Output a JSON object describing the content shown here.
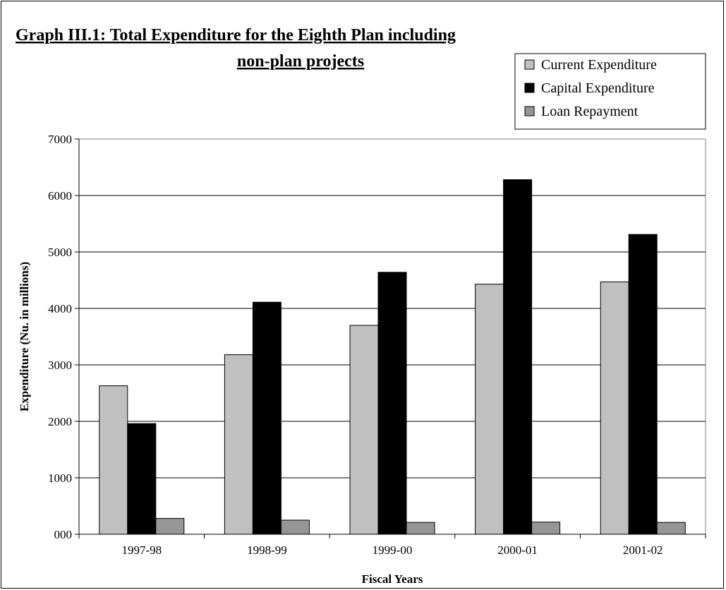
{
  "chart_data": {
    "type": "bar",
    "title_line1": "Graph III.1: Total Expenditure for the Eighth Plan including",
    "title_line2": "non-plan  projects",
    "xlabel": "Fiscal Years",
    "ylabel": "Expenditure (Nu. in millions)",
    "categories": [
      "1997-98",
      "1998-99",
      "1999-00",
      "2000-01",
      "2001-02"
    ],
    "ylim": [
      0,
      7000
    ],
    "yticks": [
      0,
      1000,
      2000,
      3000,
      4000,
      5000,
      6000,
      7000
    ],
    "ytick_labels": [
      "000",
      "1000",
      "2000",
      "3000",
      "4000",
      "5000",
      "6000",
      "7000"
    ],
    "grid": true,
    "legend_position": "top-right",
    "series": [
      {
        "name": "Current Expenditure",
        "color": "#c0c0c0",
        "values": [
          2630,
          3180,
          3700,
          4430,
          4470
        ]
      },
      {
        "name": "Capital Expenditure",
        "color": "#000000",
        "values": [
          1960,
          4110,
          4640,
          6280,
          5310
        ]
      },
      {
        "name": "Loan Repayment",
        "color": "#969696",
        "values": [
          280,
          250,
          210,
          215,
          210
        ]
      }
    ]
  }
}
